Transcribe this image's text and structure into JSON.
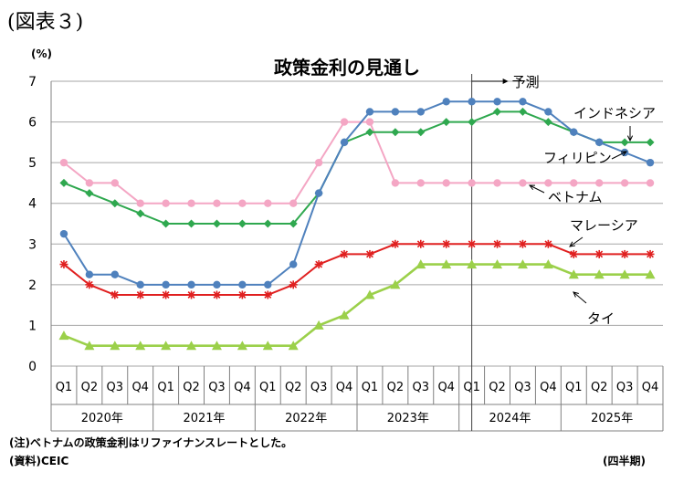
{
  "header": {
    "figure_label": "(図表３)",
    "unit": "(%)",
    "title": "政策金利の見通し"
  },
  "footer": {
    "note": "(注)ベトナムの政策金利はリファイナンスレートとした。",
    "source": "(資料)CEIC",
    "period": "(四半期)"
  },
  "chart_data": {
    "type": "line",
    "title": "政策金利の見通し",
    "ylabel": "(%)",
    "ylim": [
      0,
      7
    ],
    "yticks": [
      0,
      1,
      2,
      3,
      4,
      5,
      6,
      7
    ],
    "grid": true,
    "categories": [
      "Q1",
      "Q2",
      "Q3",
      "Q4",
      "Q1",
      "Q2",
      "Q3",
      "Q4",
      "Q1",
      "Q2",
      "Q3",
      "Q4",
      "Q1",
      "Q2",
      "Q3",
      "Q4",
      "Q1",
      "Q2",
      "Q3",
      "Q4",
      "Q1",
      "Q2",
      "Q3",
      "Q4"
    ],
    "years": [
      "2020年",
      "2021年",
      "2022年",
      "2023年",
      "2024年",
      "2025年"
    ],
    "forecast_start_after": 16,
    "forecast_label": "予測",
    "series": [
      {
        "name": "インドネシア",
        "color": "#2fa84f",
        "marker": "diamond",
        "values": [
          4.5,
          4.25,
          4.0,
          3.75,
          3.5,
          3.5,
          3.5,
          3.5,
          3.5,
          3.5,
          4.25,
          5.5,
          5.75,
          5.75,
          5.75,
          6.0,
          6.0,
          6.25,
          6.25,
          6.0,
          5.75,
          5.5,
          5.5,
          5.5
        ]
      },
      {
        "name": "フィリピン",
        "color": "#4f81bd",
        "marker": "circle",
        "values": [
          3.25,
          2.25,
          2.25,
          2.0,
          2.0,
          2.0,
          2.0,
          2.0,
          2.0,
          2.5,
          4.25,
          5.5,
          6.25,
          6.25,
          6.25,
          6.5,
          6.5,
          6.5,
          6.5,
          6.25,
          5.75,
          5.5,
          5.25,
          5.0
        ]
      },
      {
        "name": "ベトナム",
        "color": "#f4a6c4",
        "marker": "circle",
        "values": [
          5.0,
          4.5,
          4.5,
          4.0,
          4.0,
          4.0,
          4.0,
          4.0,
          4.0,
          4.0,
          5.0,
          6.0,
          6.0,
          4.5,
          4.5,
          4.5,
          4.5,
          4.5,
          4.5,
          4.5,
          4.5,
          4.5,
          4.5,
          4.5
        ]
      },
      {
        "name": "マレーシア",
        "color": "#e02020",
        "marker": "star",
        "values": [
          2.5,
          2.0,
          1.75,
          1.75,
          1.75,
          1.75,
          1.75,
          1.75,
          1.75,
          2.0,
          2.5,
          2.75,
          2.75,
          3.0,
          3.0,
          3.0,
          3.0,
          3.0,
          3.0,
          3.0,
          2.75,
          2.75,
          2.75,
          2.75
        ]
      },
      {
        "name": "タイ",
        "color": "#9bd04a",
        "marker": "triangle",
        "values": [
          0.75,
          0.5,
          0.5,
          0.5,
          0.5,
          0.5,
          0.5,
          0.5,
          0.5,
          0.5,
          1.0,
          1.25,
          1.75,
          2.0,
          2.5,
          2.5,
          2.5,
          2.5,
          2.5,
          2.5,
          2.25,
          2.25,
          2.25,
          2.25
        ]
      }
    ],
    "annotations": [
      {
        "text": "インドネシア",
        "series": "インドネシア"
      },
      {
        "text": "フィリピン",
        "series": "フィリピン"
      },
      {
        "text": "ベトナム",
        "series": "ベトナム"
      },
      {
        "text": "マレーシア",
        "series": "マレーシア"
      },
      {
        "text": "タイ",
        "series": "タイ"
      }
    ]
  }
}
